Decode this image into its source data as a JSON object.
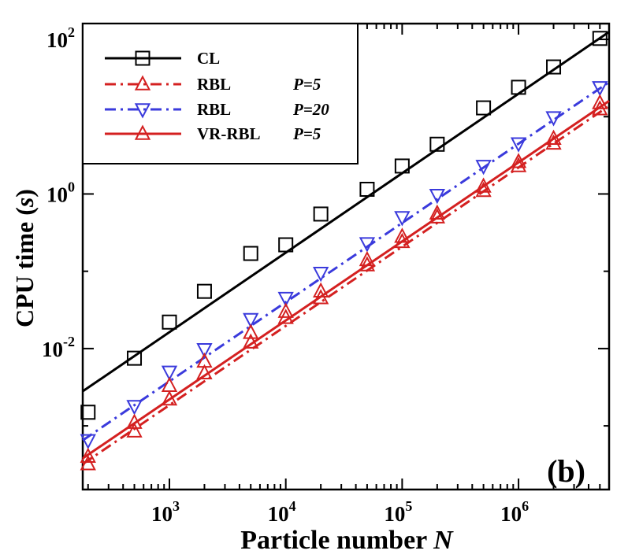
{
  "chart_data": {
    "type": "line",
    "title": "",
    "xlabel": {
      "main": "Particle number",
      "var": "N"
    },
    "ylabel": {
      "main": "CPU time",
      "unit": "s"
    },
    "xscale": "log",
    "yscale": "log",
    "xlim": [
      180,
      6000000
    ],
    "ylim": [
      0.00015,
      160
    ],
    "x_ticks": [
      {
        "base": "10",
        "exp": "3",
        "value": 1000
      },
      {
        "base": "10",
        "exp": "4",
        "value": 10000
      },
      {
        "base": "10",
        "exp": "5",
        "value": 100000
      },
      {
        "base": "10",
        "exp": "6",
        "value": 1000000
      }
    ],
    "y_ticks": [
      {
        "base": "10",
        "exp": "2",
        "value": 100
      },
      {
        "base": "10",
        "exp": "0",
        "value": 1
      },
      {
        "base": "10",
        "exp": "-2",
        "value": 0.01
      }
    ],
    "panel_label": "(b)",
    "legend": {
      "position": "top-left"
    },
    "series": [
      {
        "name": "CL",
        "param": "",
        "color": "#000000",
        "dash": "solid",
        "marker": "square",
        "x": [
          200,
          500,
          1000,
          2000,
          5000,
          10000,
          20000,
          50000,
          100000,
          200000,
          500000,
          1000000,
          2000000,
          5000000
        ],
        "y": [
          0.0015,
          0.0075,
          0.022,
          0.055,
          0.17,
          0.22,
          0.55,
          1.15,
          2.3,
          4.4,
          13,
          24,
          44,
          103
        ],
        "fit": [
          [
            180,
            0.0028
          ],
          [
            6000000,
            125
          ]
        ]
      },
      {
        "name": "RBL",
        "param": "P=5",
        "color": "#d42020",
        "dash": "dashdot",
        "marker": "triangle-up",
        "x": [
          200,
          500,
          1000,
          2000,
          5000,
          10000,
          20000,
          50000,
          100000,
          200000,
          500000,
          1000000,
          2000000,
          5000000
        ],
        "y": [
          0.00032,
          0.00085,
          0.0022,
          0.0048,
          0.012,
          0.025,
          0.045,
          0.12,
          0.24,
          0.5,
          1.1,
          2.3,
          4.5,
          12.5
        ],
        "fit": [
          [
            180,
            0.00032
          ],
          [
            6000000,
            13.8
          ]
        ]
      },
      {
        "name": "RBL",
        "param": "P=20",
        "color": "#3a3adc",
        "dash": "dashdot",
        "marker": "triangle-down",
        "x": [
          200,
          500,
          1000,
          2000,
          5000,
          10000,
          20000,
          50000,
          100000,
          200000,
          500000,
          1000000,
          2000000,
          5000000
        ],
        "y": [
          0.00065,
          0.0018,
          0.005,
          0.0098,
          0.024,
          0.045,
          0.095,
          0.23,
          0.5,
          0.97,
          2.3,
          4.5,
          9.8,
          24
        ],
        "fit": [
          [
            180,
            0.00065
          ],
          [
            6000000,
            28
          ]
        ]
      },
      {
        "name": "VR-RBL",
        "param": "P=5",
        "color": "#d42020",
        "dash": "solid",
        "marker": "triangle-up",
        "x": [
          200,
          500,
          1000,
          2000,
          5000,
          10000,
          20000,
          50000,
          100000,
          200000,
          500000,
          1000000,
          2000000,
          5000000
        ],
        "y": [
          0.0004,
          0.0011,
          0.0033,
          0.0068,
          0.016,
          0.03,
          0.055,
          0.14,
          0.28,
          0.56,
          1.25,
          2.6,
          5.2,
          15
        ],
        "fit": [
          [
            180,
            0.00038
          ],
          [
            6000000,
            16
          ]
        ]
      }
    ]
  }
}
